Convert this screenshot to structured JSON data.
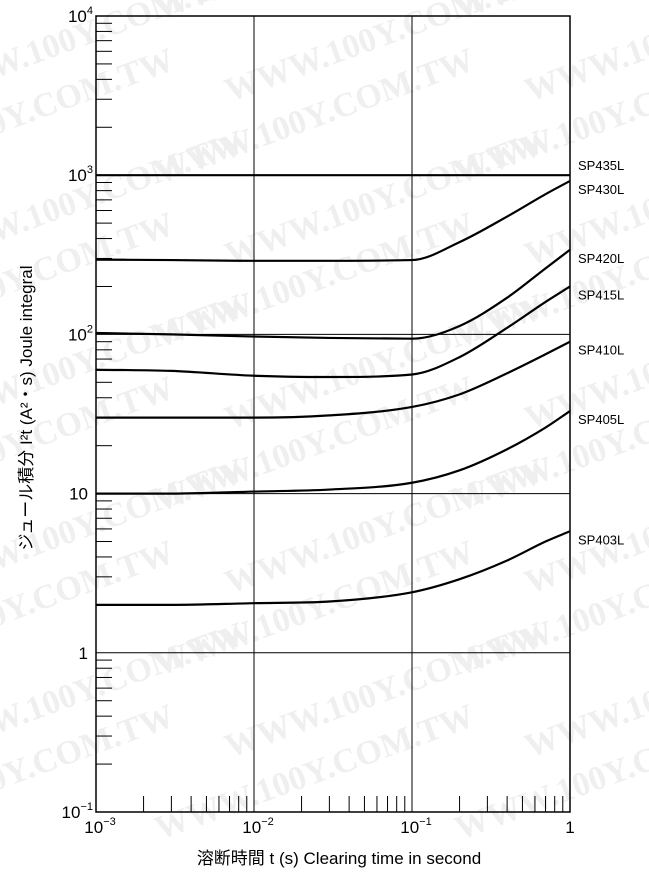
{
  "chart_data": {
    "type": "line",
    "xscale": "log",
    "yscale": "log",
    "xlim": [
      0.001,
      1
    ],
    "ylim": [
      0.1,
      10000
    ],
    "grid": true,
    "xlabel": "溶断時間 t (s)  Clearing time in second",
    "ylabel": "ジュール積分 I²t (A²・s)  Joule integral",
    "x_ticks": [
      {
        "value": 0.001,
        "mant": "10",
        "exp": "−3"
      },
      {
        "value": 0.01,
        "mant": "10",
        "exp": "−2"
      },
      {
        "value": 0.1,
        "mant": "10",
        "exp": "−1"
      },
      {
        "value": 1,
        "mant": "1",
        "exp": ""
      }
    ],
    "y_ticks": [
      {
        "value": 0.1,
        "mant": "10",
        "exp": "−1"
      },
      {
        "value": 1,
        "mant": "1",
        "exp": ""
      },
      {
        "value": 10,
        "mant": "10",
        "exp": ""
      },
      {
        "value": 100,
        "mant": "10",
        "exp": "2"
      },
      {
        "value": 1000,
        "mant": "10",
        "exp": "3"
      },
      {
        "value": 10000,
        "mant": "10",
        "exp": "4"
      }
    ],
    "x": [
      0.001,
      0.003,
      0.01,
      0.03,
      0.1,
      0.2,
      0.4,
      0.7,
      1
    ],
    "series": [
      {
        "name": "SP435L",
        "values": [
          1000,
          1000,
          1000,
          1000,
          1000,
          1000,
          1000,
          1000,
          1000
        ]
      },
      {
        "name": "SP430L",
        "values": [
          295,
          293,
          290,
          290,
          293,
          380,
          550,
          760,
          920
        ]
      },
      {
        "name": "SP420L",
        "values": [
          102,
          100,
          97,
          95,
          94,
          113,
          170,
          260,
          340
        ]
      },
      {
        "name": "SP415L",
        "values": [
          60,
          59,
          55,
          54,
          56,
          72,
          110,
          160,
          200
        ]
      },
      {
        "name": "SP410L",
        "values": [
          30,
          30,
          30,
          31,
          35,
          42,
          57,
          75,
          90
        ]
      },
      {
        "name": "SP405L",
        "values": [
          10,
          10,
          10.3,
          10.6,
          11.7,
          14,
          19,
          26,
          33
        ]
      },
      {
        "name": "SP403L",
        "values": [
          2,
          2,
          2.05,
          2.1,
          2.4,
          2.9,
          3.8,
          5,
          5.8
        ]
      }
    ]
  },
  "watermark": "WWW.100Y.COM.TW"
}
